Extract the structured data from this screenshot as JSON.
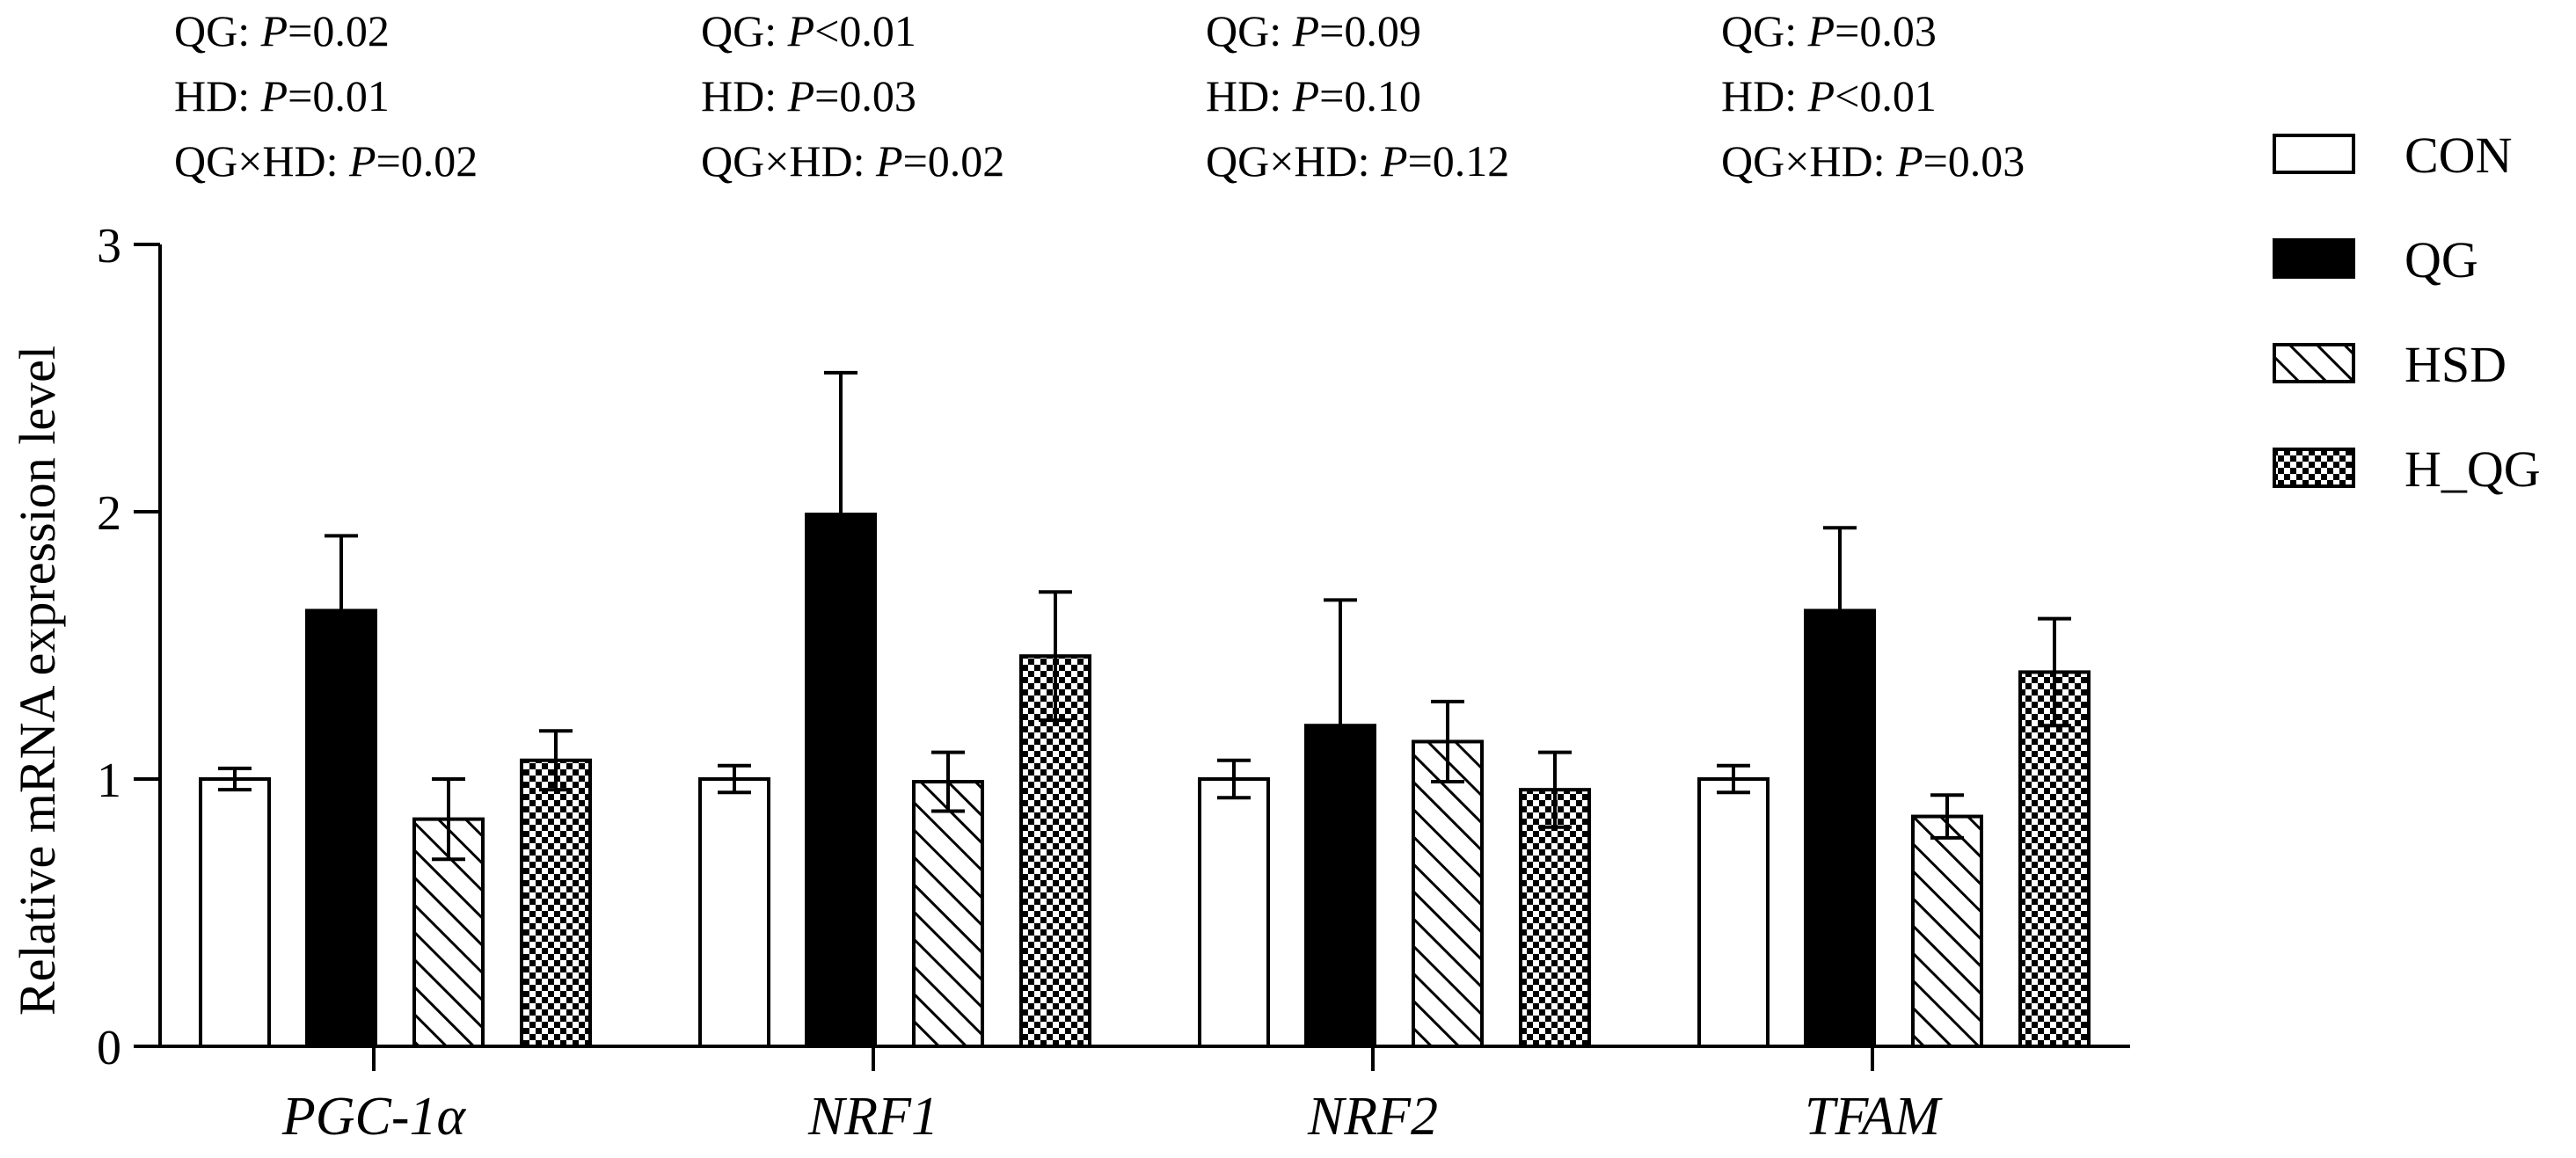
{
  "chart_data": {
    "type": "bar",
    "title": "",
    "xlabel": "",
    "ylabel": "Relative mRNA expression level",
    "ylim": [
      0,
      3
    ],
    "yticks": [
      "0",
      "1",
      "2",
      "3"
    ],
    "grid": false,
    "legend_position": "right",
    "categories": [
      "PGC-1α",
      "NRF1",
      "NRF2",
      "TFAM"
    ],
    "series": [
      {
        "name": "CON",
        "pattern": "open",
        "values": [
          1.0,
          1.0,
          1.0,
          1.0
        ],
        "errors": [
          0.04,
          0.05,
          0.07,
          0.05
        ]
      },
      {
        "name": "QG",
        "pattern": "solid",
        "values": [
          1.63,
          1.99,
          1.2,
          1.63
        ],
        "errors": [
          0.28,
          0.53,
          0.47,
          0.31
        ]
      },
      {
        "name": "HSD",
        "pattern": "hatch",
        "values": [
          0.85,
          0.99,
          1.14,
          0.86
        ],
        "errors": [
          0.15,
          0.11,
          0.15,
          0.08
        ]
      },
      {
        "name": "H_QG",
        "pattern": "checker",
        "values": [
          1.07,
          1.46,
          0.96,
          1.4
        ],
        "errors": [
          0.11,
          0.24,
          0.14,
          0.2
        ]
      }
    ],
    "annotations": [
      {
        "line1": {
          "pre": "QG: ",
          "p": "P",
          "rest": "=0.02"
        },
        "line2": {
          "pre": "HD: ",
          "p": "P",
          "rest": "=0.01"
        },
        "line3": {
          "pre": "QG×HD: ",
          "p": "P",
          "rest": "=0.02"
        }
      },
      {
        "line1": {
          "pre": "QG: ",
          "p": "P",
          "rest": "<0.01"
        },
        "line2": {
          "pre": "HD: ",
          "p": "P",
          "rest": "=0.03"
        },
        "line3": {
          "pre": "QG×HD: ",
          "p": "P",
          "rest": "=0.02"
        }
      },
      {
        "line1": {
          "pre": "QG: ",
          "p": "P",
          "rest": "=0.09"
        },
        "line2": {
          "pre": "HD: ",
          "p": "P",
          "rest": "=0.10"
        },
        "line3": {
          "pre": "QG×HD: ",
          "p": "P",
          "rest": "=0.12"
        }
      },
      {
        "line1": {
          "pre": "QG: ",
          "p": "P",
          "rest": "=0.03"
        },
        "line2": {
          "pre": "HD: ",
          "p": "P",
          "rest": "<0.01"
        },
        "line3": {
          "pre": "QG×HD: ",
          "p": "P",
          "rest": "=0.03"
        }
      }
    ]
  }
}
